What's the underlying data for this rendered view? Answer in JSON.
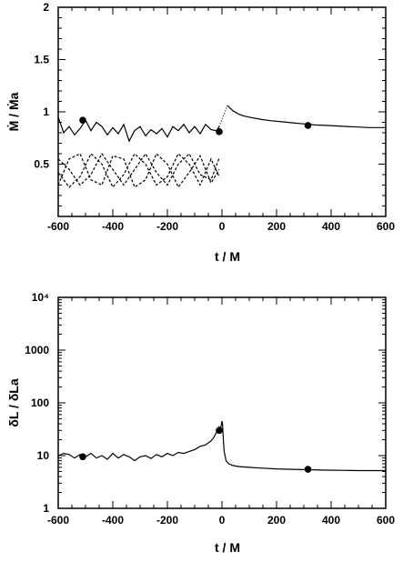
{
  "chart_data": [
    {
      "type": "line",
      "xlim": [
        -600,
        600
      ],
      "ylim": [
        0,
        2
      ],
      "xticks": [
        "-600",
        "-400",
        "-200",
        "0",
        "200",
        "400",
        "600"
      ],
      "yticks": [
        "2",
        "1.5",
        "1",
        "0.5"
      ],
      "xlabel": "t / M",
      "ylabel": "Ṁ / Ṁa",
      "series": [
        {
          "style": "solid",
          "x": [
            -600,
            -580,
            -560,
            -540,
            -520,
            -500,
            -480,
            -460,
            -440,
            -420,
            -400,
            -380,
            -360,
            -340,
            -320,
            -300,
            -280,
            -260,
            -240,
            -220,
            -200,
            -180,
            -160,
            -140,
            -120,
            -100,
            -80,
            -60,
            -40,
            -20,
            -10
          ],
          "y": [
            0.95,
            0.8,
            0.86,
            0.78,
            0.84,
            0.92,
            0.82,
            0.9,
            0.86,
            0.78,
            0.85,
            0.79,
            0.88,
            0.72,
            0.82,
            0.86,
            0.77,
            0.83,
            0.79,
            0.84,
            0.76,
            0.86,
            0.82,
            0.88,
            0.8,
            0.86,
            0.79,
            0.88,
            0.83,
            0.82,
            0.86
          ]
        },
        {
          "style": "dotted",
          "x": [
            -10,
            20
          ],
          "y": [
            0.86,
            1.06
          ]
        },
        {
          "style": "solid",
          "x": [
            20,
            40,
            60,
            80,
            100,
            140,
            180,
            220,
            260,
            300,
            340,
            380,
            420,
            460,
            500,
            540,
            580,
            600
          ],
          "y": [
            1.06,
            1.01,
            0.98,
            0.96,
            0.95,
            0.93,
            0.915,
            0.905,
            0.895,
            0.885,
            0.875,
            0.87,
            0.865,
            0.86,
            0.855,
            0.85,
            0.85,
            0.85
          ]
        },
        {
          "style": "dashed",
          "x": [
            -600,
            -560,
            -520,
            -480,
            -440,
            -400,
            -360,
            -320,
            -280,
            -240,
            -200,
            -160,
            -120,
            -80,
            -40,
            -10
          ],
          "y": [
            0.3,
            0.55,
            0.6,
            0.35,
            0.3,
            0.58,
            0.55,
            0.28,
            0.35,
            0.6,
            0.5,
            0.28,
            0.42,
            0.58,
            0.32,
            0.45
          ]
        },
        {
          "style": "dashed",
          "x": [
            -600,
            -560,
            -520,
            -480,
            -440,
            -400,
            -360,
            -320,
            -280,
            -240,
            -200,
            -160,
            -120,
            -80,
            -40,
            -10
          ],
          "y": [
            0.42,
            0.28,
            0.38,
            0.6,
            0.5,
            0.28,
            0.4,
            0.6,
            0.5,
            0.3,
            0.38,
            0.6,
            0.5,
            0.3,
            0.55,
            0.38
          ]
        },
        {
          "style": "dashed",
          "x": [
            -600,
            -560,
            -520,
            -480,
            -440,
            -400,
            -360,
            -320,
            -280,
            -240,
            -200,
            -160,
            -120,
            -80,
            -40,
            -10
          ],
          "y": [
            0.55,
            0.45,
            0.3,
            0.4,
            0.6,
            0.45,
            0.3,
            0.45,
            0.6,
            0.42,
            0.3,
            0.5,
            0.6,
            0.4,
            0.35,
            0.56
          ]
        }
      ],
      "markers": {
        "x": [
          -510,
          -10,
          315
        ],
        "y": [
          0.92,
          0.81,
          0.87
        ]
      }
    },
    {
      "type": "line",
      "scale": "log",
      "xlim": [
        -600,
        600
      ],
      "ylim": [
        1,
        10000
      ],
      "xticks": [
        "-600",
        "-400",
        "-200",
        "0",
        "200",
        "400",
        "600"
      ],
      "ytick_values": [
        10000,
        1000,
        100,
        10,
        1
      ],
      "yticks": [
        "10⁴",
        "1000",
        "100",
        "10",
        "1"
      ],
      "xlabel": "t / M",
      "ylabel": "δL / δLa",
      "series": [
        {
          "style": "solid",
          "x": [
            -600,
            -580,
            -560,
            -540,
            -520,
            -500,
            -480,
            -460,
            -440,
            -420,
            -400,
            -380,
            -360,
            -340,
            -320,
            -300,
            -280,
            -260,
            -240,
            -220,
            -200,
            -180,
            -160,
            -140,
            -120,
            -100,
            -80,
            -60,
            -40,
            -30,
            -20,
            -15,
            -10,
            -5,
            0,
            2,
            4,
            8,
            15,
            25,
            40,
            60,
            80,
            100,
            140,
            200,
            260,
            320,
            380,
            440,
            500,
            560,
            600
          ],
          "y": [
            10,
            11,
            10.5,
            9,
            10.5,
            9.5,
            11,
            9,
            10,
            8.5,
            11,
            9,
            10.5,
            9.5,
            8,
            9.5,
            10,
            8.8,
            10.5,
            9.5,
            11,
            10,
            11.5,
            11,
            12,
            13,
            15,
            16,
            19,
            22,
            28,
            30,
            35,
            32,
            45,
            40,
            25,
            12,
            8,
            7,
            6.5,
            6.2,
            6.1,
            6,
            5.8,
            5.6,
            5.5,
            5.4,
            5.3,
            5.25,
            5.2,
            5.2,
            5.2
          ]
        }
      ],
      "markers": {
        "x": [
          -510,
          -10,
          315
        ],
        "y": [
          9.5,
          30,
          5.5
        ]
      }
    }
  ]
}
